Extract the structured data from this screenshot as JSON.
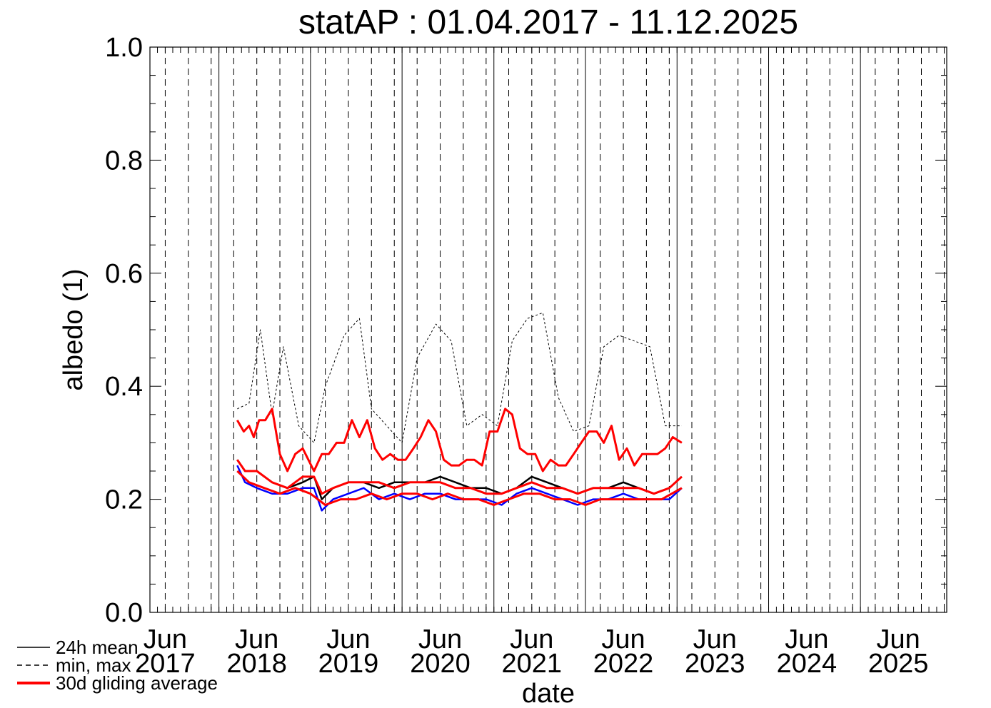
{
  "chart_data": {
    "type": "line",
    "title": "statAP : 01.04.2017 - 11.12.2025",
    "xlabel": "date",
    "ylabel": "albedo (1)",
    "ylim": [
      0.0,
      1.0
    ],
    "xlim": [
      "2017-04-01",
      "2025-12-11"
    ],
    "y_ticks": [
      "0.0",
      "0.2",
      "0.4",
      "0.6",
      "0.8",
      "1.0"
    ],
    "x_ticks": [
      {
        "date": "2017-06-01",
        "month": "Jun",
        "year": "2017"
      },
      {
        "date": "2018-06-01",
        "month": "Jun",
        "year": "2018"
      },
      {
        "date": "2019-06-01",
        "month": "Jun",
        "year": "2019"
      },
      {
        "date": "2020-06-01",
        "month": "Jun",
        "year": "2020"
      },
      {
        "date": "2021-06-01",
        "month": "Jun",
        "year": "2021"
      },
      {
        "date": "2022-06-01",
        "month": "Jun",
        "year": "2022"
      },
      {
        "date": "2023-06-01",
        "month": "Jun",
        "year": "2023"
      },
      {
        "date": "2024-06-01",
        "month": "Jun",
        "year": "2024"
      },
      {
        "date": "2025-06-01",
        "month": "Jun",
        "year": "2025"
      }
    ],
    "year_boundaries": [
      "2018-01-01",
      "2019-01-01",
      "2020-01-01",
      "2021-01-01",
      "2022-01-01",
      "2023-01-01",
      "2024-01-01",
      "2025-01-01"
    ],
    "grid": "vertical lines: solid at year boundaries, dashed at quarter months",
    "legend_position": "bottom-left, outside plot",
    "legend": [
      {
        "label": "24h mean",
        "style": "solid",
        "color": "#000000"
      },
      {
        "label": "min, max",
        "style": "dashed",
        "color": "#000000"
      },
      {
        "label": "30d gliding average",
        "style": "solid-thick",
        "color": "#ff0000"
      }
    ],
    "series": [
      {
        "name": "24h mean",
        "color": "#000000",
        "x": [
          "2018-03-15",
          "2018-04-15",
          "2018-06-01",
          "2018-08-01",
          "2018-10-01",
          "2018-12-01",
          "2019-01-15",
          "2019-02-15",
          "2019-04-01",
          "2019-06-01",
          "2019-08-01",
          "2019-10-01",
          "2019-12-01",
          "2020-02-01",
          "2020-04-01",
          "2020-06-01",
          "2020-08-01",
          "2020-10-01",
          "2020-12-01",
          "2021-02-01",
          "2021-04-01",
          "2021-06-01",
          "2021-08-01",
          "2021-10-01",
          "2021-12-01",
          "2022-02-01",
          "2022-04-01",
          "2022-06-01",
          "2022-08-01",
          "2022-10-01",
          "2022-12-01",
          "2023-01-20"
        ],
        "y": [
          0.27,
          0.25,
          0.25,
          0.23,
          0.22,
          0.23,
          0.24,
          0.2,
          0.22,
          0.23,
          0.23,
          0.22,
          0.23,
          0.23,
          0.23,
          0.24,
          0.23,
          0.22,
          0.22,
          0.21,
          0.22,
          0.24,
          0.23,
          0.22,
          0.21,
          0.22,
          0.22,
          0.23,
          0.22,
          0.21,
          0.22,
          0.24
        ]
      },
      {
        "name": "min",
        "color": "#0000ff",
        "x": [
          "2018-03-15",
          "2018-04-15",
          "2018-06-01",
          "2018-08-01",
          "2018-10-01",
          "2018-12-01",
          "2019-01-15",
          "2019-02-15",
          "2019-04-01",
          "2019-06-01",
          "2019-08-01",
          "2019-10-01",
          "2019-12-01",
          "2020-02-01",
          "2020-04-01",
          "2020-06-01",
          "2020-08-01",
          "2020-10-01",
          "2020-12-01",
          "2021-02-01",
          "2021-04-01",
          "2021-06-01",
          "2021-08-01",
          "2021-10-01",
          "2021-12-01",
          "2022-02-01",
          "2022-04-01",
          "2022-06-01",
          "2022-08-01",
          "2022-10-01",
          "2022-12-01",
          "2023-01-20"
        ],
        "y": [
          0.26,
          0.23,
          0.22,
          0.21,
          0.21,
          0.22,
          0.22,
          0.18,
          0.2,
          0.21,
          0.22,
          0.2,
          0.21,
          0.2,
          0.21,
          0.21,
          0.2,
          0.2,
          0.2,
          0.19,
          0.21,
          0.22,
          0.21,
          0.2,
          0.19,
          0.2,
          0.2,
          0.21,
          0.2,
          0.2,
          0.2,
          0.22
        ]
      },
      {
        "name": "max",
        "color": "#000000",
        "x": [
          "2018-03-15",
          "2018-05-01",
          "2018-06-15",
          "2018-08-01",
          "2018-09-15",
          "2018-11-15",
          "2019-01-15",
          "2019-03-01",
          "2019-05-15",
          "2019-07-15",
          "2019-09-01",
          "2019-11-01",
          "2020-01-01",
          "2020-03-01",
          "2020-05-15",
          "2020-07-15",
          "2020-09-15",
          "2020-11-15",
          "2021-01-15",
          "2021-03-15",
          "2021-05-15",
          "2021-07-15",
          "2021-09-15",
          "2021-11-15",
          "2022-01-15",
          "2022-03-15",
          "2022-05-15",
          "2022-07-15",
          "2022-09-15",
          "2022-11-15",
          "2023-01-20"
        ],
        "y": [
          0.36,
          0.37,
          0.5,
          0.35,
          0.47,
          0.33,
          0.3,
          0.4,
          0.49,
          0.52,
          0.36,
          0.33,
          0.3,
          0.45,
          0.51,
          0.48,
          0.33,
          0.35,
          0.33,
          0.48,
          0.52,
          0.53,
          0.38,
          0.32,
          0.33,
          0.47,
          0.49,
          0.48,
          0.47,
          0.33,
          0.33
        ]
      },
      {
        "name": "30d gliding average",
        "color": "#ff0000",
        "x": [
          "2018-03-15",
          "2018-04-10",
          "2018-05-01",
          "2018-05-20",
          "2018-06-10",
          "2018-07-05",
          "2018-08-01",
          "2018-09-01",
          "2018-10-01",
          "2018-11-01",
          "2018-12-01",
          "2019-01-15",
          "2019-02-15",
          "2019-03-15",
          "2019-04-15",
          "2019-05-15",
          "2019-06-15",
          "2019-07-15",
          "2019-08-15",
          "2019-09-15",
          "2019-10-15",
          "2019-11-15",
          "2019-12-15",
          "2020-01-15",
          "2020-02-15",
          "2020-03-15",
          "2020-04-15",
          "2020-05-15",
          "2020-06-15",
          "2020-07-15",
          "2020-08-15",
          "2020-09-15",
          "2020-10-15",
          "2020-11-15",
          "2020-12-15",
          "2021-01-15",
          "2021-02-15",
          "2021-03-15",
          "2021-04-15",
          "2021-05-15",
          "2021-06-15",
          "2021-07-15",
          "2021-08-15",
          "2021-09-15",
          "2021-10-15",
          "2021-11-15",
          "2021-12-15",
          "2022-01-15",
          "2022-02-15",
          "2022-03-15",
          "2022-04-15",
          "2022-05-15",
          "2022-06-15",
          "2022-07-15",
          "2022-08-15",
          "2022-09-15",
          "2022-10-15",
          "2022-11-15",
          "2022-12-15",
          "2023-01-20"
        ],
        "y": [
          0.34,
          0.32,
          0.33,
          0.31,
          0.34,
          0.34,
          0.36,
          0.28,
          0.25,
          0.28,
          0.29,
          0.25,
          0.28,
          0.28,
          0.3,
          0.3,
          0.34,
          0.31,
          0.34,
          0.29,
          0.27,
          0.28,
          0.27,
          0.27,
          0.29,
          0.31,
          0.34,
          0.32,
          0.27,
          0.26,
          0.26,
          0.27,
          0.27,
          0.26,
          0.32,
          0.32,
          0.36,
          0.35,
          0.29,
          0.28,
          0.28,
          0.25,
          0.27,
          0.26,
          0.26,
          0.28,
          0.3,
          0.32,
          0.32,
          0.3,
          0.33,
          0.27,
          0.29,
          0.26,
          0.28,
          0.28,
          0.28,
          0.29,
          0.31,
          0.3
        ]
      },
      {
        "name": "30d gliding average (24h mean)",
        "color": "#ff0000",
        "x": [
          "2018-03-15",
          "2018-04-15",
          "2018-06-01",
          "2018-08-01",
          "2018-10-01",
          "2018-12-01",
          "2019-01-15",
          "2019-02-15",
          "2019-04-01",
          "2019-06-01",
          "2019-08-01",
          "2019-10-01",
          "2019-12-01",
          "2020-02-01",
          "2020-04-01",
          "2020-06-01",
          "2020-08-01",
          "2020-10-01",
          "2020-12-01",
          "2021-02-01",
          "2021-04-01",
          "2021-06-01",
          "2021-08-01",
          "2021-10-01",
          "2021-12-01",
          "2022-02-01",
          "2022-04-01",
          "2022-06-01",
          "2022-08-01",
          "2022-10-01",
          "2022-12-01",
          "2023-01-20"
        ],
        "y": [
          0.27,
          0.25,
          0.25,
          0.23,
          0.22,
          0.24,
          0.24,
          0.21,
          0.22,
          0.23,
          0.23,
          0.23,
          0.22,
          0.23,
          0.23,
          0.23,
          0.22,
          0.22,
          0.21,
          0.21,
          0.22,
          0.23,
          0.22,
          0.22,
          0.21,
          0.22,
          0.22,
          0.22,
          0.22,
          0.21,
          0.22,
          0.24
        ]
      },
      {
        "name": "30d gliding average (min)",
        "color": "#ff0000",
        "x": [
          "2018-03-15",
          "2018-05-01",
          "2018-07-01",
          "2018-09-01",
          "2018-11-01",
          "2019-01-01",
          "2019-03-01",
          "2019-05-01",
          "2019-07-01",
          "2019-09-01",
          "2019-11-01",
          "2020-01-01",
          "2020-03-01",
          "2020-05-01",
          "2020-07-01",
          "2020-09-01",
          "2020-11-01",
          "2021-01-01",
          "2021-03-01",
          "2021-05-01",
          "2021-07-01",
          "2021-09-01",
          "2021-11-01",
          "2022-01-01",
          "2022-03-01",
          "2022-05-01",
          "2022-07-01",
          "2022-09-01",
          "2022-11-01",
          "2023-01-20"
        ],
        "y": [
          0.25,
          0.23,
          0.22,
          0.21,
          0.22,
          0.21,
          0.19,
          0.2,
          0.2,
          0.21,
          0.2,
          0.21,
          0.21,
          0.2,
          0.21,
          0.2,
          0.2,
          0.19,
          0.2,
          0.21,
          0.21,
          0.2,
          0.2,
          0.19,
          0.2,
          0.2,
          0.2,
          0.2,
          0.2,
          0.22
        ]
      }
    ]
  }
}
